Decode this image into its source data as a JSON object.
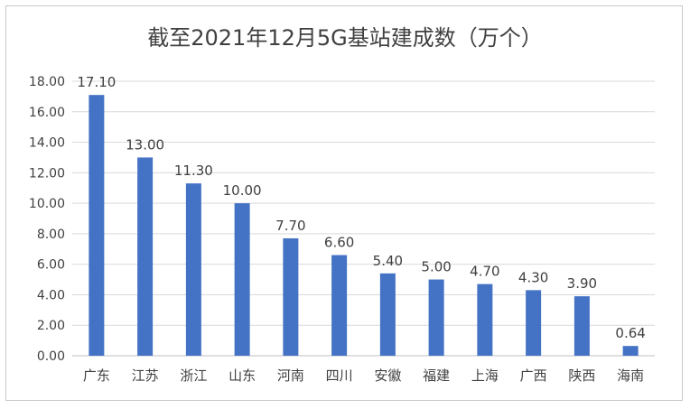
{
  "chart_data": {
    "type": "bar",
    "title": "截至2021年12月5G基站建成数（万个）",
    "categories": [
      "广东",
      "江苏",
      "浙江",
      "山东",
      "河南",
      "四川",
      "安徽",
      "福建",
      "上海",
      "广西",
      "陕西",
      "海南"
    ],
    "values": [
      17.1,
      13.0,
      11.3,
      10.0,
      7.7,
      6.6,
      5.4,
      5.0,
      4.7,
      4.3,
      3.9,
      0.64
    ],
    "data_labels": [
      "17.10",
      "13.00",
      "11.30",
      "10.00",
      "7.70",
      "6.60",
      "5.40",
      "5.00",
      "4.70",
      "4.30",
      "3.90",
      "0.64"
    ],
    "yticks": [
      "0.00",
      "2.00",
      "4.00",
      "6.00",
      "8.00",
      "10.00",
      "12.00",
      "14.00",
      "16.00",
      "18.00"
    ],
    "ylim": [
      0,
      18
    ],
    "xlabel": "",
    "ylabel": "",
    "grid": true,
    "bar_color": "#4472C4",
    "grid_color": "#d9d9d9"
  }
}
